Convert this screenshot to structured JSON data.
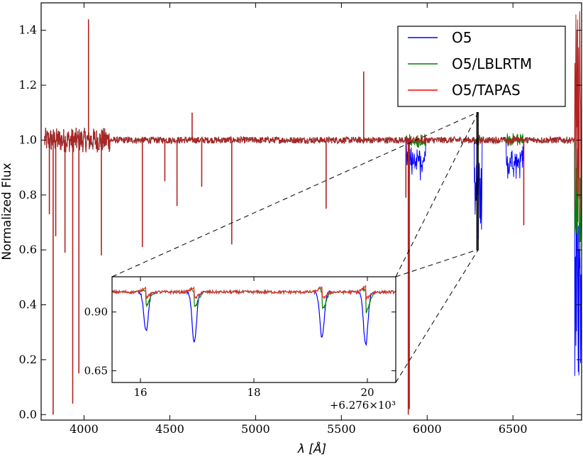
{
  "chart_data": [
    {
      "type": "line",
      "xlabel": "λ [Å]",
      "ylabel": "Normalized Flux",
      "xlim": [
        3750,
        6900
      ],
      "ylim": [
        -0.02,
        1.5
      ],
      "xticks": [
        4000,
        4500,
        5000,
        5500,
        6000,
        6500
      ],
      "yticks": [
        0.0,
        0.2,
        0.4,
        0.6,
        0.8,
        1.0,
        1.2,
        1.4
      ],
      "ytick_labels": [
        "0.0",
        "0.2",
        "0.4",
        "0.6",
        "0.8",
        "1.0",
        "1.2",
        "1.4"
      ],
      "grid": false,
      "legend_position": "top-right",
      "series": [
        {
          "name": "O5",
          "color": "#0000ff"
        },
        {
          "name": "O5/LBLRTM",
          "color": "#008000"
        },
        {
          "name": "O5/TAPAS",
          "color": "#ff0000"
        }
      ],
      "absorption_lines": [
        {
          "x": 3798,
          "y": 0.73
        },
        {
          "x": 3820,
          "y": 0.0
        },
        {
          "x": 3835,
          "y": 0.65
        },
        {
          "x": 3889,
          "y": 0.59
        },
        {
          "x": 3934,
          "y": 0.04
        },
        {
          "x": 3970,
          "y": 0.15
        },
        {
          "x": 4101,
          "y": 0.58
        },
        {
          "x": 4340,
          "y": 0.61
        },
        {
          "x": 4471,
          "y": 0.85
        },
        {
          "x": 4542,
          "y": 0.76
        },
        {
          "x": 4686,
          "y": 0.83
        },
        {
          "x": 4861,
          "y": 0.62
        },
        {
          "x": 5411,
          "y": 0.75
        },
        {
          "x": 5876,
          "y": 0.79
        },
        {
          "x": 5890,
          "y": 0.0
        },
        {
          "x": 5896,
          "y": 0.02
        },
        {
          "x": 6563,
          "y": 0.69
        }
      ],
      "emission_spikes": [
        {
          "x": 4026,
          "y": 1.44
        },
        {
          "x": 5630,
          "y": 1.25
        },
        {
          "x": 4630,
          "y": 1.1
        }
      ],
      "telluric_bands": [
        {
          "from": 6275,
          "to": 6320,
          "o5_min": 0.6,
          "corrected_min": 0.94
        },
        {
          "from": 6460,
          "to": 6560,
          "o5_min": 0.82,
          "corrected_min": 0.96
        },
        {
          "from": 6860,
          "to": 6900,
          "o5_min": 0.02,
          "lblrtm_min": 0.55,
          "tapas_min": 0.7,
          "tapas_max": 1.47
        },
        {
          "from": 5880,
          "to": 5990,
          "o5_min": 0.85,
          "corrected_min": 0.96
        }
      ],
      "zoom_region": {
        "x": [
          6290,
          6297
        ],
        "y": [
          0.6,
          1.1
        ]
      }
    },
    {
      "type": "line",
      "role": "inset",
      "xlim": [
        15.5,
        20.5
      ],
      "ylim": [
        0.6,
        1.05
      ],
      "xticks": [
        16,
        18,
        20
      ],
      "xtick_labels": [
        "16",
        "18",
        "20"
      ],
      "yticks": [
        0.65,
        0.9
      ],
      "ytick_labels": [
        "0.65",
        "0.90"
      ],
      "offset_label": "+6.276×10³",
      "absorption_lines": [
        {
          "x": 16.1,
          "o5": 0.82,
          "lblrtm": 0.93,
          "tapas": 0.95
        },
        {
          "x": 16.95,
          "o5": 0.77,
          "lblrtm": 0.92,
          "tapas": 0.94
        },
        {
          "x": 19.2,
          "o5": 0.79,
          "lblrtm": 0.91,
          "tapas": 0.94
        },
        {
          "x": 19.97,
          "o5": 0.76,
          "lblrtm": 0.9,
          "tapas": 0.94
        }
      ]
    }
  ]
}
